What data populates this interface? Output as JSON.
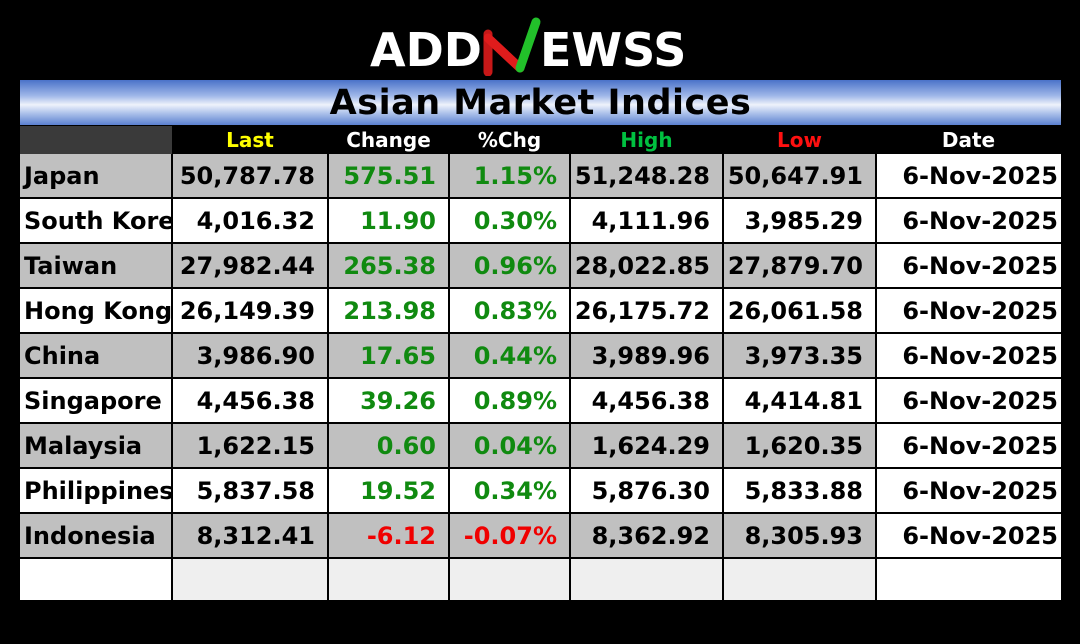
{
  "brand": {
    "logo_text_left": "ADD",
    "logo_text_right": "EWSS"
  },
  "title": "Asian Market Indices",
  "columns": [
    "Last",
    "Change",
    "%Chg",
    "High",
    "Low",
    "Date"
  ],
  "colors": {
    "last_header": "#ffff00",
    "high_header": "#00c040",
    "low_header": "#ff1010",
    "positive": "#108a10",
    "negative": "#f00000"
  },
  "rows": [
    {
      "name": "Japan",
      "last": "50,787.78",
      "change": "575.51",
      "pct": "1.15%",
      "high": "51,248.28",
      "low": "50,647.91",
      "date": "6-Nov-2025",
      "dir": "pos"
    },
    {
      "name": "South Korea",
      "last": "4,016.32",
      "change": "11.90",
      "pct": "0.30%",
      "high": "4,111.96",
      "low": "3,985.29",
      "date": "6-Nov-2025",
      "dir": "pos"
    },
    {
      "name": "Taiwan",
      "last": "27,982.44",
      "change": "265.38",
      "pct": "0.96%",
      "high": "28,022.85",
      "low": "27,879.70",
      "date": "6-Nov-2025",
      "dir": "pos"
    },
    {
      "name": "Hong Kong",
      "last": "26,149.39",
      "change": "213.98",
      "pct": "0.83%",
      "high": "26,175.72",
      "low": "26,061.58",
      "date": "6-Nov-2025",
      "dir": "pos"
    },
    {
      "name": "China",
      "last": "3,986.90",
      "change": "17.65",
      "pct": "0.44%",
      "high": "3,989.96",
      "low": "3,973.35",
      "date": "6-Nov-2025",
      "dir": "pos"
    },
    {
      "name": "Singapore",
      "last": "4,456.38",
      "change": "39.26",
      "pct": "0.89%",
      "high": "4,456.38",
      "low": "4,414.81",
      "date": "6-Nov-2025",
      "dir": "pos"
    },
    {
      "name": "Malaysia",
      "last": "1,622.15",
      "change": "0.60",
      "pct": "0.04%",
      "high": "1,624.29",
      "low": "1,620.35",
      "date": "6-Nov-2025",
      "dir": "pos"
    },
    {
      "name": "Philippines",
      "last": "5,837.58",
      "change": "19.52",
      "pct": "0.34%",
      "high": "5,876.30",
      "low": "5,833.88",
      "date": "6-Nov-2025",
      "dir": "pos"
    },
    {
      "name": "Indonesia",
      "last": "8,312.41",
      "change": "-6.12",
      "pct": "-0.07%",
      "high": "8,362.92",
      "low": "8,305.93",
      "date": "6-Nov-2025",
      "dir": "neg"
    }
  ]
}
